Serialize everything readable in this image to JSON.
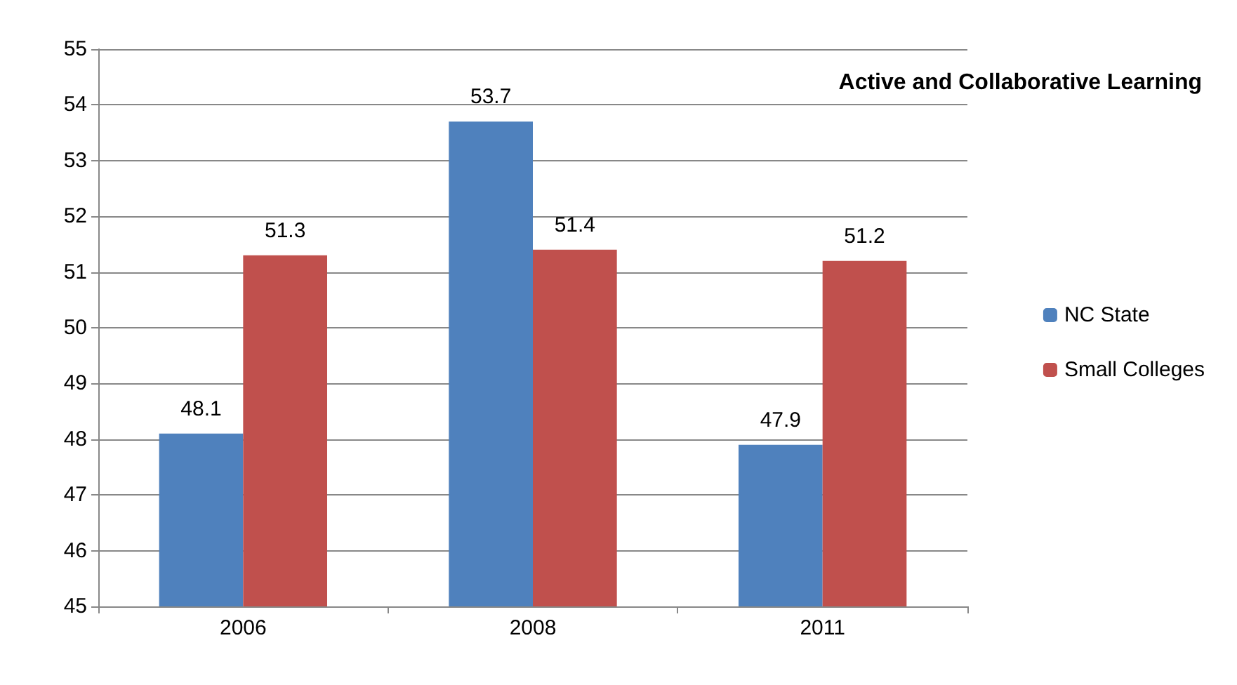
{
  "chart_data": {
    "type": "bar",
    "title": "Active and Collaborative Learning",
    "categories": [
      "2006",
      "2008",
      "2011"
    ],
    "series": [
      {
        "name": "NC State",
        "color": "#4f81bd",
        "values": [
          48.1,
          53.7,
          47.9
        ]
      },
      {
        "name": "Small Colleges",
        "color": "#c0504d",
        "values": [
          51.3,
          51.4,
          51.2
        ]
      }
    ],
    "ylim": [
      45,
      55
    ],
    "yticks": [
      45,
      46,
      47,
      48,
      49,
      50,
      51,
      52,
      53,
      54,
      55
    ],
    "grid": "y",
    "legend": "right",
    "data_labels": true
  }
}
